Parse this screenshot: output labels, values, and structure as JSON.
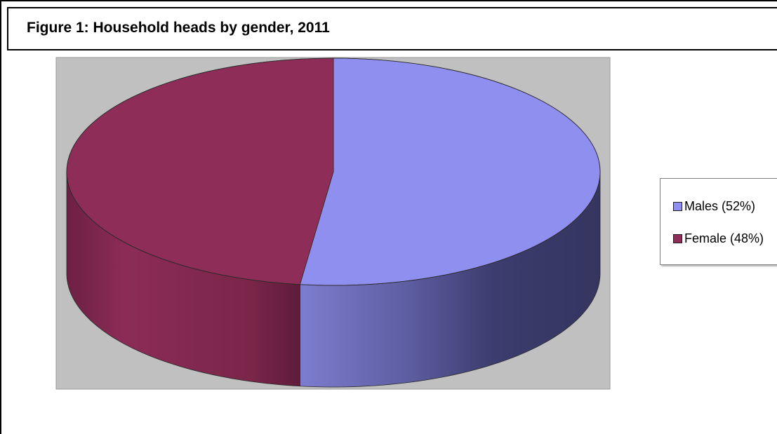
{
  "chart_data": {
    "type": "pie",
    "title": "Figure 1: Household heads by gender, 2011",
    "style": "3d",
    "legend_position": "right",
    "slices": [
      {
        "label": "Males (52%)",
        "value": 52,
        "color": "#8f8fef"
      },
      {
        "label": "Female (48%)",
        "value": 48,
        "color": "#8e2d58"
      }
    ],
    "background_color": "#c0c0c0"
  }
}
